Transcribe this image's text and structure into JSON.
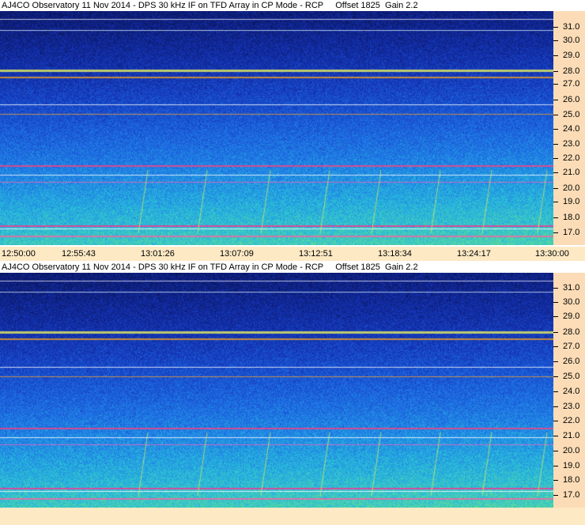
{
  "panels": [
    {
      "title": "AJ4CO Observatory 11 Nov 2014 - DPS 30 kHz IF on TFD Array in CP Mode - RCP     Offset 1825  Gain 2.2",
      "frequency_labels": [
        "31.0",
        "30.0",
        "29.0",
        "28.0",
        "27.0",
        "26.0",
        "25.0",
        "24.0",
        "23.0",
        "22.0",
        "21.0",
        "20.0",
        "19.0",
        "18.0",
        "17.0"
      ],
      "time_labels": [
        "12:50:00",
        "12:55:43",
        "13:01:26",
        "13:07:09",
        "13:12:51",
        "13:18:34",
        "13:24:17",
        "13:30:00"
      ]
    },
    {
      "title": "AJ4CO Observatory 11 Nov 2014 - DPS 30 kHz IF on TFD Array in CP Mode - RCP     Offset 1825  Gain 2.2",
      "frequency_labels": [
        "31.0",
        "30.0",
        "29.0",
        "28.0",
        "27.0",
        "26.0",
        "25.0",
        "24.0",
        "23.0",
        "22.0",
        "21.0",
        "20.0",
        "19.0",
        "18.0",
        "17.0"
      ],
      "time_labels": []
    }
  ],
  "colors": {
    "spectrogram_background": "#0a1a6e",
    "axis_background": "#fbdcb6",
    "time_axis_background": "#fde9c4"
  }
}
